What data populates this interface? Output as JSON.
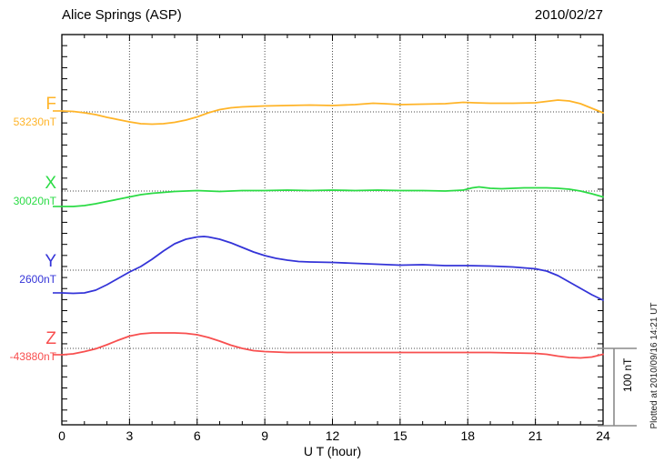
{
  "header": {
    "station_title": "Alice Springs (ASP)",
    "date": "2010/02/27"
  },
  "footer": {
    "plotted_at": "Plotted at 2010/09/16 14:21 UT"
  },
  "chart_data": {
    "type": "line",
    "title": "Alice Springs (ASP) magnetogram 2010/02/27",
    "xlabel": "U T (hour)",
    "xlim": [
      0,
      24
    ],
    "x_ticks": [
      0,
      3,
      6,
      9,
      12,
      15,
      18,
      21,
      24
    ],
    "x_minor_tick_step_hours": 1,
    "grid": "dotted vertical lines every 3 hours; dotted horizontal line at each series baseline",
    "legend_position": "left margin, one colored label per stacked trace",
    "scale_bar": {
      "label": "100 nT",
      "nT": 100
    },
    "axis_color": "#000000",
    "grid_color": "#4a4a4a",
    "scale_bar_color": "#8a8a8a",
    "series": [
      {
        "name": "F",
        "label": "F",
        "baseline_label": "53230nT",
        "baseline_nT": 53230,
        "color": "#ffb428",
        "points_hour_dnT": [
          [
            0,
            1.2
          ],
          [
            0.5,
            0.6
          ],
          [
            1,
            -1.2
          ],
          [
            1.5,
            -3.5
          ],
          [
            2,
            -7.1
          ],
          [
            2.5,
            -10
          ],
          [
            3,
            -12.9
          ],
          [
            3.5,
            -15.3
          ],
          [
            4,
            -15.9
          ],
          [
            4.5,
            -15.3
          ],
          [
            5,
            -13.5
          ],
          [
            5.5,
            -10.6
          ],
          [
            6,
            -6.5
          ],
          [
            6.5,
            -1.2
          ],
          [
            7,
            2.9
          ],
          [
            7.5,
            5.3
          ],
          [
            8,
            6.5
          ],
          [
            8.5,
            7.1
          ],
          [
            9,
            7.6
          ],
          [
            10,
            8.2
          ],
          [
            11,
            8.8
          ],
          [
            12,
            8.2
          ],
          [
            13,
            9.4
          ],
          [
            13.8,
            11.2
          ],
          [
            14.3,
            10.6
          ],
          [
            15,
            9.4
          ],
          [
            16,
            10
          ],
          [
            17,
            10.6
          ],
          [
            17.8,
            12.4
          ],
          [
            18.3,
            11.8
          ],
          [
            19,
            11.2
          ],
          [
            20,
            11.2
          ],
          [
            21,
            11.8
          ],
          [
            21.5,
            13.5
          ],
          [
            22,
            15.3
          ],
          [
            22.5,
            14.1
          ],
          [
            23,
            10.6
          ],
          [
            23.5,
            4.7
          ],
          [
            24,
            -1.2
          ]
        ]
      },
      {
        "name": "X",
        "label": "X",
        "baseline_label": "30020nT",
        "baseline_nT": 30020,
        "color": "#2bdb45",
        "points_hour_dnT": [
          [
            0,
            -20
          ],
          [
            0.5,
            -20
          ],
          [
            1,
            -18.8
          ],
          [
            1.5,
            -16.5
          ],
          [
            2,
            -13.5
          ],
          [
            2.5,
            -10.6
          ],
          [
            3,
            -7.6
          ],
          [
            3.5,
            -4.7
          ],
          [
            4,
            -2.9
          ],
          [
            4.5,
            -1.8
          ],
          [
            5,
            -0.6
          ],
          [
            5.5,
            0
          ],
          [
            6,
            0.6
          ],
          [
            6.5,
            0
          ],
          [
            7,
            -0.6
          ],
          [
            7.5,
            0
          ],
          [
            8,
            0.6
          ],
          [
            9,
            0.6
          ],
          [
            10,
            1.2
          ],
          [
            11,
            0.6
          ],
          [
            12,
            1.2
          ],
          [
            13,
            0.6
          ],
          [
            14,
            1.2
          ],
          [
            15,
            0.6
          ],
          [
            16,
            0.6
          ],
          [
            17,
            0
          ],
          [
            17.8,
            1.2
          ],
          [
            18.2,
            4.1
          ],
          [
            18.5,
            5.3
          ],
          [
            19,
            3.5
          ],
          [
            19.5,
            2.9
          ],
          [
            20,
            3.5
          ],
          [
            20.5,
            4.1
          ],
          [
            21,
            4.1
          ],
          [
            21.5,
            4.1
          ],
          [
            22,
            3.5
          ],
          [
            22.5,
            2.4
          ],
          [
            23,
            0
          ],
          [
            23.5,
            -3.5
          ],
          [
            24,
            -7.6
          ]
        ]
      },
      {
        "name": "Y",
        "label": "Y",
        "baseline_label": "2600nT",
        "baseline_nT": 2600,
        "color": "#3434d8",
        "points_hour_dnT": [
          [
            0,
            -29.4
          ],
          [
            0.5,
            -30
          ],
          [
            1,
            -29.4
          ],
          [
            1.5,
            -25.9
          ],
          [
            2,
            -18.8
          ],
          [
            2.5,
            -10.6
          ],
          [
            3,
            -2.4
          ],
          [
            3.5,
            4.7
          ],
          [
            4,
            14.1
          ],
          [
            4.5,
            24.7
          ],
          [
            5,
            34.1
          ],
          [
            5.5,
            40
          ],
          [
            6,
            42.9
          ],
          [
            6.3,
            43.5
          ],
          [
            6.5,
            42.9
          ],
          [
            7,
            40
          ],
          [
            7.5,
            35.3
          ],
          [
            8,
            29.4
          ],
          [
            8.5,
            23.5
          ],
          [
            9,
            18.8
          ],
          [
            9.5,
            15.3
          ],
          [
            10,
            12.9
          ],
          [
            10.5,
            11.2
          ],
          [
            11,
            10.6
          ],
          [
            12,
            10
          ],
          [
            13,
            8.8
          ],
          [
            14,
            7.6
          ],
          [
            15,
            6.5
          ],
          [
            16,
            7.1
          ],
          [
            17,
            5.9
          ],
          [
            18,
            5.9
          ],
          [
            19,
            5.3
          ],
          [
            20,
            4.1
          ],
          [
            21,
            1.8
          ],
          [
            21.5,
            -1.2
          ],
          [
            22,
            -7.1
          ],
          [
            22.5,
            -15.3
          ],
          [
            23,
            -23.5
          ],
          [
            23.5,
            -31.8
          ],
          [
            24,
            -38.8
          ]
        ]
      },
      {
        "name": "Z",
        "label": "Z",
        "baseline_label": "-43880nT",
        "baseline_nT": -43880,
        "color": "#f84f4f",
        "points_hour_dnT": [
          [
            0,
            -8.2
          ],
          [
            0.5,
            -7.1
          ],
          [
            1,
            -4.1
          ],
          [
            1.5,
            -0.6
          ],
          [
            2,
            4.7
          ],
          [
            2.5,
            10.6
          ],
          [
            3,
            15.9
          ],
          [
            3.5,
            18.8
          ],
          [
            4,
            20
          ],
          [
            4.5,
            20
          ],
          [
            5,
            20
          ],
          [
            5.5,
            19.4
          ],
          [
            6,
            17.6
          ],
          [
            6.5,
            14.1
          ],
          [
            7,
            9.4
          ],
          [
            7.5,
            4.1
          ],
          [
            8,
            0
          ],
          [
            8.5,
            -2.9
          ],
          [
            9,
            -4.1
          ],
          [
            9.5,
            -4.7
          ],
          [
            10,
            -5.3
          ],
          [
            11,
            -5.3
          ],
          [
            12,
            -5.3
          ],
          [
            13,
            -5.3
          ],
          [
            14,
            -5.3
          ],
          [
            15,
            -5.3
          ],
          [
            16,
            -5.3
          ],
          [
            17,
            -5.3
          ],
          [
            18,
            -5.3
          ],
          [
            19,
            -5.3
          ],
          [
            20,
            -5.9
          ],
          [
            21,
            -6.5
          ],
          [
            21.5,
            -7.6
          ],
          [
            22,
            -10
          ],
          [
            22.5,
            -11.8
          ],
          [
            23,
            -12.4
          ],
          [
            23.5,
            -11.2
          ],
          [
            24,
            -7.6
          ]
        ]
      }
    ]
  }
}
